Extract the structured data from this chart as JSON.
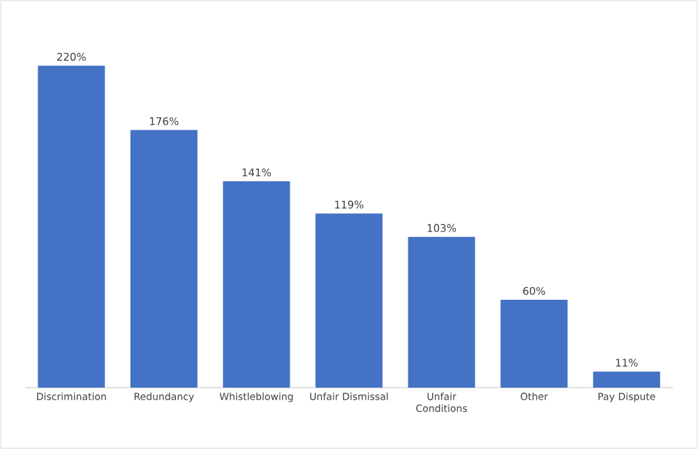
{
  "chart_data": {
    "type": "bar",
    "categories": [
      "Discrimination",
      "Redundancy",
      "Whistleblowing",
      "Unfair Dismissal",
      "Unfair Conditions",
      "Other",
      "Pay Dispute"
    ],
    "values": [
      220,
      176,
      141,
      119,
      103,
      60,
      11
    ],
    "value_labels": [
      "220%",
      "176%",
      "141%",
      "119%",
      "103%",
      "60%",
      "11%"
    ],
    "color": "#4472c4"
  }
}
